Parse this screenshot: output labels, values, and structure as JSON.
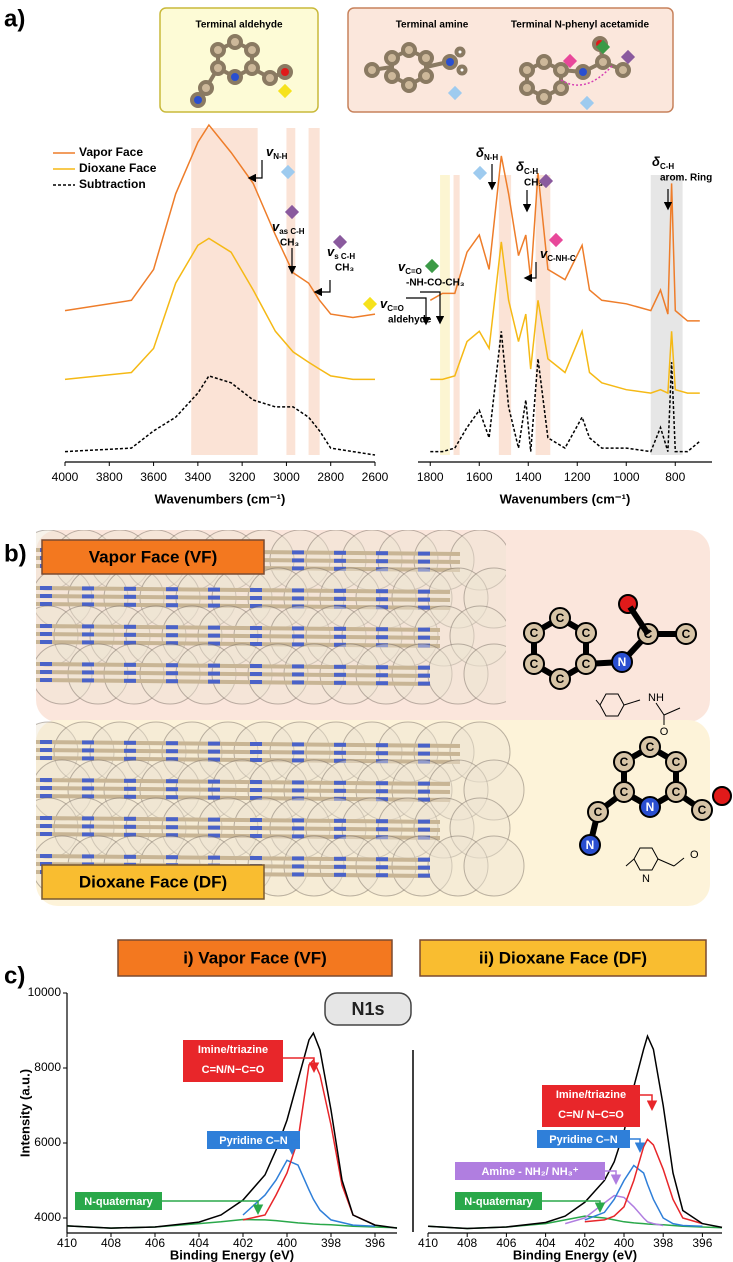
{
  "panel_labels": {
    "a": "a)",
    "b": "b)",
    "c": "c)"
  },
  "structures": {
    "aldehyde": "Terminal aldehyde",
    "amine": "Terminal amine",
    "acetamide": "Terminal N-phenyl acetamide"
  },
  "chart_data": [
    {
      "type": "line",
      "x_label": "Wavenumbers (cm⁻¹)",
      "xlim": [
        4000,
        2600
      ],
      "xticks": [
        4000,
        3800,
        3600,
        3400,
        3200,
        3000,
        2800,
        2600
      ],
      "legend": "upper left",
      "x": [
        4000,
        3700,
        3600,
        3500,
        3400,
        3350,
        3250,
        3150,
        3050,
        2970,
        2900,
        2850,
        2800,
        2700,
        2600
      ],
      "series": [
        {
          "name": "Vapor Face",
          "color": "#ee7d2a",
          "values": [
            46,
            49,
            58,
            80,
            95,
            100,
            92,
            83,
            68,
            57,
            54,
            49,
            45,
            44,
            45
          ]
        },
        {
          "name": "Dioxane Face",
          "color": "#f5b915",
          "values": [
            26,
            28,
            35,
            54,
            65,
            67,
            63,
            52,
            40,
            34,
            31,
            29,
            27,
            26,
            26
          ]
        },
        {
          "name": "Subtraction",
          "color": "#000000",
          "dash": true,
          "values": [
            5,
            6,
            11,
            15,
            22,
            27,
            25,
            20,
            18,
            18,
            15,
            11,
            6,
            5,
            4
          ]
        }
      ],
      "bands": [
        {
          "range": [
            3430,
            3130
          ],
          "color": "#fbe3d6"
        },
        {
          "range": [
            3000,
            2960
          ],
          "color": "#fbe3d6"
        },
        {
          "range": [
            2900,
            2850
          ],
          "color": "#fbe3d6"
        }
      ],
      "annotations": [
        {
          "symbol": "v",
          "sub": "N-H",
          "diamond": "#9ecbef"
        },
        {
          "symbol": "v",
          "sub": "as C-H",
          "line2": "CH₃",
          "diamond": "#8a5a9e"
        },
        {
          "symbol": "v",
          "sub": "s C-H",
          "line2": "CH₃",
          "diamond": "#8a5a9e"
        }
      ]
    },
    {
      "type": "line",
      "x_label": "Wavenumbers (cm⁻¹)",
      "xlim": [
        1850,
        650
      ],
      "xticks": [
        1800,
        1600,
        1400,
        1200,
        1000,
        800
      ],
      "x": [
        1800,
        1750,
        1700,
        1650,
        1600,
        1560,
        1510,
        1480,
        1440,
        1410,
        1390,
        1360,
        1320,
        1250,
        1180,
        1150,
        1100,
        1000,
        900,
        860,
        830,
        815,
        800,
        750,
        700
      ],
      "series": [
        {
          "color": "#ee7d2a",
          "values": [
            49,
            51,
            51,
            63,
            68,
            58,
            91,
            80,
            62,
            68,
            55,
            86,
            58,
            55,
            65,
            52,
            49,
            48,
            46,
            52,
            45,
            83,
            46,
            43,
            43
          ]
        },
        {
          "color": "#f5b915",
          "values": [
            26,
            26,
            27,
            37,
            40,
            35,
            66,
            49,
            37,
            45,
            29,
            49,
            32,
            28,
            40,
            28,
            25,
            23,
            22,
            23,
            22,
            40,
            23,
            22,
            22
          ]
        },
        {
          "color": "#000000",
          "dash": true,
          "values": [
            5,
            5,
            6,
            12,
            17,
            9,
            40,
            18,
            6,
            20,
            5,
            32,
            9,
            6,
            15,
            9,
            6,
            6,
            5,
            12,
            5,
            31,
            5,
            5,
            8
          ]
        }
      ],
      "bands": [
        {
          "range": [
            1760,
            1720
          ],
          "color": "#fcf5d2"
        },
        {
          "range": [
            1705,
            1680
          ],
          "color": "#fbe3d6"
        },
        {
          "range": [
            1520,
            1470
          ],
          "color": "#fbe3d6"
        },
        {
          "range": [
            1370,
            1310
          ],
          "color": "#fbe3d6"
        },
        {
          "range": [
            900,
            770
          ],
          "color": "#e6e6e6"
        }
      ],
      "annotations": [
        {
          "symbol": "δ",
          "sub": "N-H",
          "diamond": "#9ecbef"
        },
        {
          "symbol": "δ",
          "sub": "C-H",
          "line2": "CH₃",
          "diamond": "#8a5a9e"
        },
        {
          "symbol": "v",
          "sub": "C-NH-C",
          "diamond": "#e8489a"
        },
        {
          "symbol": "v",
          "sub": "C=O",
          "line2": "-NH-CO-CH₃",
          "diamond": "#3b9a47"
        },
        {
          "symbol": "v",
          "sub": "C=O",
          "line2": "aldehyde",
          "diamond": "#f6e21c"
        },
        {
          "symbol": "δ",
          "sub": "C-H",
          "line2": "arom. Ring"
        }
      ]
    },
    {
      "type": "line",
      "title": "i) Vapor Face (VF)",
      "x_label": "Binding Energy (eV)",
      "y_label": "Intensity (a.u.)",
      "xlim": [
        410,
        395
      ],
      "xticks": [
        410,
        408,
        406,
        404,
        402,
        400,
        398,
        396
      ],
      "ylim": [
        3600,
        10000
      ],
      "yticks": [
        4000,
        6000,
        8000,
        10000
      ],
      "x": [
        410,
        408,
        406,
        404,
        403,
        402,
        401,
        400.5,
        400,
        399.5,
        399,
        398.8,
        398.5,
        398,
        397.5,
        397,
        396,
        395
      ],
      "series": [
        {
          "color": "#2aa84a",
          "values": [
            3790,
            3730,
            3760,
            3850,
            3900,
            3960,
            3950,
            3930,
            3900,
            3870,
            3850,
            3840,
            3830,
            3820,
            3800,
            3780,
            3760,
            3740
          ]
        },
        {
          "color": "#2f7fd9",
          "values": [
            null,
            null,
            null,
            null,
            null,
            4080,
            4610,
            5010,
            5540,
            5410,
            4750,
            4500,
            4210,
            3950,
            3880,
            3810,
            3780,
            null
          ]
        },
        {
          "color": "#e8262a",
          "values": [
            null,
            null,
            null,
            null,
            null,
            3950,
            4080,
            4610,
            5200,
            6080,
            8080,
            8210,
            7810,
            6480,
            4880,
            4080,
            3810,
            null
          ]
        },
        {
          "color": "#000000",
          "values": [
            3790,
            3730,
            3760,
            3890,
            4080,
            4480,
            5150,
            5810,
            6610,
            7680,
            8750,
            8930,
            8480,
            6880,
            5010,
            4080,
            3810,
            3730
          ]
        }
      ],
      "annotations": [
        {
          "lines": [
            "Imine/triazine",
            "C=N/N−C=O"
          ],
          "color": "#e8262a"
        },
        {
          "lines": [
            "Pyridine C–N"
          ],
          "color": "#2f7fd9"
        },
        {
          "lines": [
            "N-quaternary"
          ],
          "color": "#2aa84a"
        }
      ]
    },
    {
      "type": "line",
      "title": "ii) Dioxane Face (DF)",
      "x_label": "Binding Energy (eV)",
      "xlim": [
        410,
        395
      ],
      "xticks": [
        410,
        408,
        406,
        404,
        402,
        400,
        398,
        396
      ],
      "ylim": [
        3600,
        10000
      ],
      "x": [
        410,
        408,
        406,
        404,
        403,
        402,
        401,
        400.5,
        400,
        399.5,
        399,
        398.8,
        398.5,
        398,
        397.5,
        397,
        396,
        395
      ],
      "series": [
        {
          "color": "#2aa84a",
          "values": [
            3780,
            3720,
            3760,
            3850,
            3950,
            4050,
            4000,
            3950,
            3900,
            3870,
            3850,
            3840,
            3830,
            3820,
            3800,
            3780,
            3760,
            3740
          ]
        },
        {
          "color": "#b07ee0",
          "values": [
            null,
            null,
            null,
            null,
            3850,
            4000,
            4400,
            4600,
            4550,
            4300,
            4000,
            3900,
            3850,
            3800,
            null,
            null,
            null,
            null
          ]
        },
        {
          "color": "#2f7fd9",
          "values": [
            null,
            null,
            null,
            null,
            null,
            3950,
            4150,
            4500,
            5000,
            5400,
            5200,
            4900,
            4500,
            4000,
            3850,
            3800,
            3780,
            null
          ]
        },
        {
          "color": "#e8262a",
          "values": [
            null,
            null,
            null,
            null,
            null,
            3900,
            3950,
            4050,
            4300,
            5000,
            5900,
            6100,
            5950,
            5300,
            4500,
            4000,
            3850,
            null
          ]
        },
        {
          "color": "#000000",
          "values": [
            3780,
            3720,
            3760,
            3880,
            4050,
            4420,
            5000,
            5500,
            6300,
            7500,
            8500,
            8850,
            8500,
            7000,
            5200,
            4200,
            3850,
            3750
          ]
        }
      ],
      "annotations": [
        {
          "lines": [
            "Imine/triazine",
            "C=N/ N−C=O"
          ],
          "color": "#e8262a"
        },
        {
          "lines": [
            "Pyridine C–N"
          ],
          "color": "#2f7fd9"
        },
        {
          "lines": [
            "Amine - NH₂/ NH₃⁺"
          ],
          "color": "#b07ee0"
        },
        {
          "lines": [
            "N-quaternary"
          ],
          "color": "#2aa84a"
        }
      ]
    }
  ],
  "panel_b": {
    "vf_label": "Vapor Face (VF)",
    "df_label": "Dioxane Face (DF)",
    "vf_atoms": [
      "C",
      "C",
      "C",
      "C",
      "C",
      "C",
      "N",
      "C",
      "C"
    ],
    "vf_skeletal": [
      "NH",
      "O"
    ],
    "df_atoms": [
      "C",
      "C",
      "C",
      "C",
      "N",
      "C",
      "C",
      "N",
      "C"
    ],
    "df_skeletal": [
      "N",
      "O"
    ]
  },
  "panel_c": {
    "badge": "N1s"
  }
}
